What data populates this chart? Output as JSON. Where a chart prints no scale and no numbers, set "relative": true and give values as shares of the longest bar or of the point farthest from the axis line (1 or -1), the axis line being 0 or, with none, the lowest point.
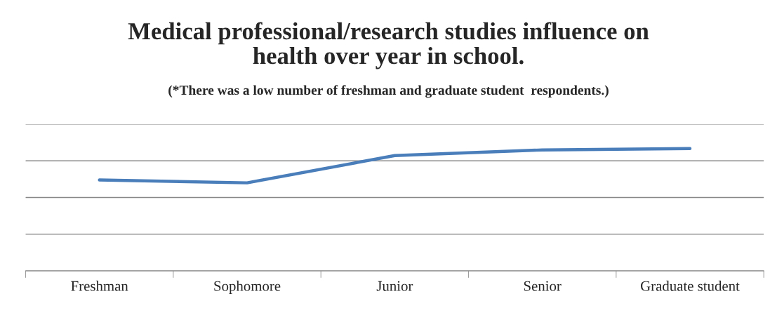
{
  "chart_data": {
    "type": "line",
    "title": "Medical professional/research studies influence on\nhealth over year in school.",
    "subtitle": "(*There was a low number of freshman and graduate student  respondents.)",
    "categories": [
      "Freshman",
      "Sophomore",
      "Junior",
      "Senior",
      "Graduate student"
    ],
    "series": [
      {
        "color": "#4a7ebb",
        "values": [
          0.743,
          0.72,
          0.943,
          0.989,
          1
        ]
      }
    ],
    "relative": true,
    "grid": "y",
    "legend": false,
    "marker": "none",
    "line_style": "solid"
  }
}
